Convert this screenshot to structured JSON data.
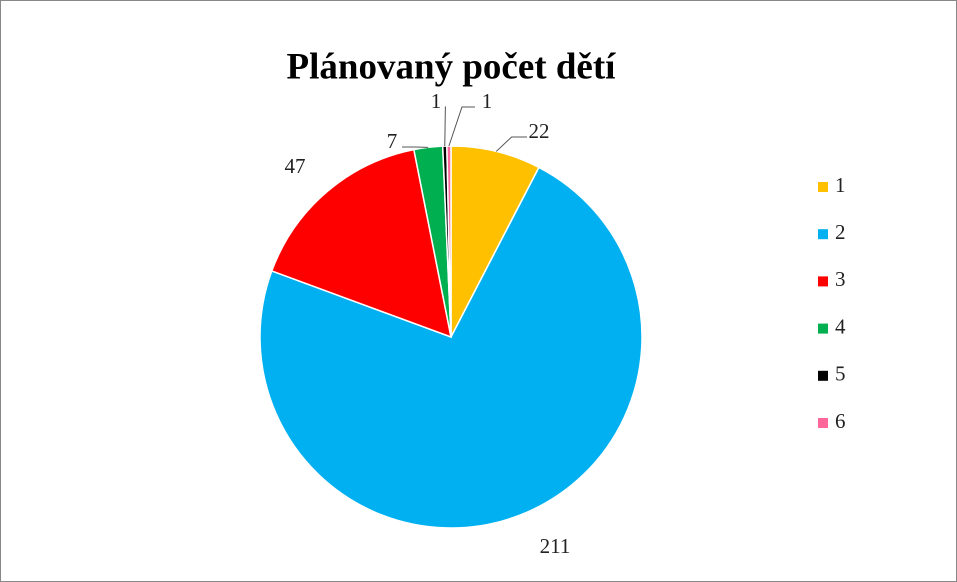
{
  "chart_data": {
    "type": "pie",
    "title": "Plánovaný počet dětí",
    "categories": [
      "1",
      "2",
      "3",
      "4",
      "5",
      "6"
    ],
    "values": [
      22,
      211,
      47,
      7,
      1,
      1
    ],
    "colors": [
      "#FFC000",
      "#00B0F0",
      "#FF0000",
      "#00B050",
      "#000000",
      "#FF6699"
    ],
    "legend": "right"
  }
}
